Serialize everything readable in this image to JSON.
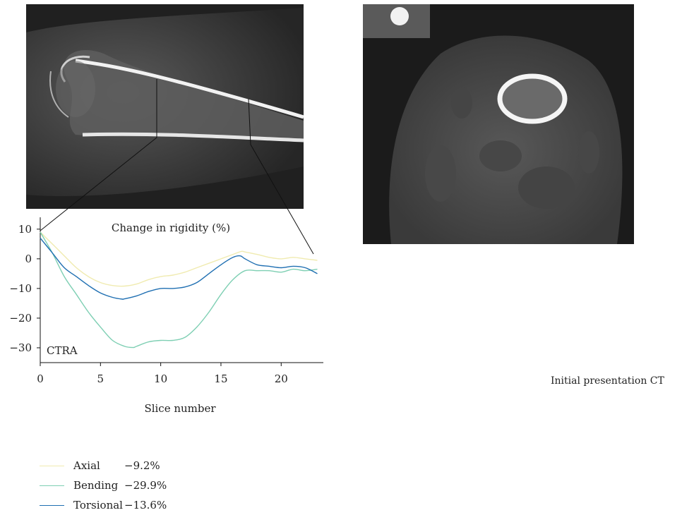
{
  "chart_data": {
    "type": "line",
    "title": "Change in rigidity (%)",
    "xlabel": "Slice number",
    "ylabel": "",
    "annotation": "CTRA",
    "xlim": [
      0,
      23.5
    ],
    "ylim": [
      -35,
      14
    ],
    "xticks": [
      0,
      5,
      10,
      15,
      20
    ],
    "yticks": [
      10,
      0,
      -10,
      -20,
      -30
    ],
    "grid": false,
    "legend_position": "bottom-left",
    "series": [
      {
        "name": "Axial",
        "summary": "−9.2%",
        "color": "#f0ebb0",
        "x": [
          0,
          1,
          2,
          3,
          4,
          5,
          6,
          7,
          8,
          9,
          10,
          11,
          12,
          13,
          14,
          15,
          16,
          16.7,
          17,
          18,
          19,
          20,
          21,
          22,
          23
        ],
        "y": [
          9,
          5,
          1,
          -3,
          -6,
          -8,
          -9,
          -9.2,
          -8.5,
          -7,
          -6,
          -5.5,
          -4.5,
          -3,
          -1.5,
          0,
          1.5,
          2.5,
          2.3,
          1.5,
          0.5,
          0,
          0.5,
          0,
          -0.5
        ]
      },
      {
        "name": "Bending",
        "summary": "−29.9%",
        "color": "#7ecfb3",
        "x": [
          0,
          1,
          2,
          3,
          4,
          5,
          6,
          7,
          7.7,
          8,
          9,
          10,
          11,
          12,
          13,
          14,
          15,
          16,
          17,
          18,
          19,
          20,
          21,
          22,
          23
        ],
        "y": [
          9,
          2,
          -6,
          -12,
          -18,
          -23,
          -27.5,
          -29.5,
          -29.9,
          -29.5,
          -28,
          -27.5,
          -27.5,
          -26.5,
          -23,
          -18,
          -12,
          -7,
          -4,
          -4,
          -4,
          -4.5,
          -3.5,
          -4,
          -3.5
        ]
      },
      {
        "name": "Torsional",
        "summary": "−13.6%",
        "color": "#1f6fb2",
        "x": [
          0,
          1,
          2,
          3,
          4,
          5,
          6,
          6.8,
          7,
          8,
          9,
          10,
          11,
          12,
          13,
          14,
          15,
          16,
          16.6,
          17,
          18,
          19,
          20,
          21,
          22,
          23
        ],
        "y": [
          7,
          2,
          -3,
          -6,
          -9,
          -11.5,
          -13,
          -13.6,
          -13.5,
          -12.5,
          -11,
          -10,
          -10,
          -9.5,
          -8,
          -5,
          -2,
          0.5,
          1,
          0,
          -2,
          -2.5,
          -3,
          -2.5,
          -3,
          -5
        ]
      }
    ]
  },
  "captions": {
    "right": "Initial presentation CT"
  }
}
